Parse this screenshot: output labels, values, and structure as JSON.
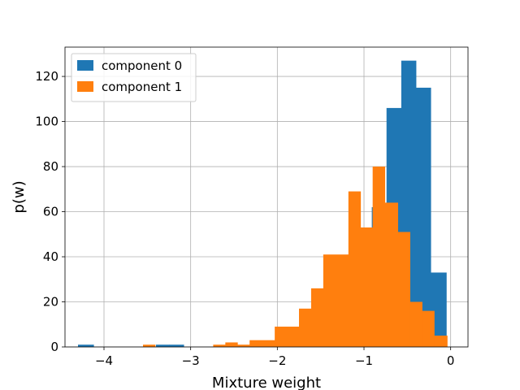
{
  "chart_data": {
    "type": "bar",
    "title": "",
    "xlabel": "Mixture weight",
    "ylabel": "p(w)",
    "xlim": [
      -4.45,
      0.2
    ],
    "ylim": [
      0,
      133
    ],
    "xticks": [
      -4,
      -3,
      -2,
      -1,
      0
    ],
    "yticks": [
      0,
      20,
      40,
      60,
      80,
      100,
      120
    ],
    "grid": true,
    "legend_position": "top-left",
    "series": [
      {
        "name": "component 0",
        "color": "#1f77b4",
        "bins": [
          {
            "x0": -4.3,
            "x1": -4.12,
            "y": 1
          },
          {
            "x0": -3.4,
            "x1": -3.25,
            "y": 1
          },
          {
            "x0": -3.25,
            "x1": -3.08,
            "y": 1
          },
          {
            "x0": -0.91,
            "x1": -0.74,
            "y": 62
          },
          {
            "x0": -0.74,
            "x1": -0.57,
            "y": 106
          },
          {
            "x0": -0.57,
            "x1": -0.4,
            "y": 127
          },
          {
            "x0": -0.4,
            "x1": -0.23,
            "y": 115
          },
          {
            "x0": -0.23,
            "x1": -0.05,
            "y": 33
          }
        ]
      },
      {
        "name": "component 1",
        "color": "#ff7f0e",
        "bins": [
          {
            "x0": -3.55,
            "x1": -3.41,
            "y": 1
          },
          {
            "x0": -2.74,
            "x1": -2.6,
            "y": 1
          },
          {
            "x0": -2.6,
            "x1": -2.46,
            "y": 2
          },
          {
            "x0": -2.46,
            "x1": -2.32,
            "y": 1
          },
          {
            "x0": -2.32,
            "x1": -2.03,
            "y": 3
          },
          {
            "x0": -2.03,
            "x1": -1.75,
            "y": 9
          },
          {
            "x0": -1.75,
            "x1": -1.61,
            "y": 17
          },
          {
            "x0": -1.61,
            "x1": -1.47,
            "y": 26
          },
          {
            "x0": -1.47,
            "x1": -1.18,
            "y": 41
          },
          {
            "x0": -1.18,
            "x1": -1.04,
            "y": 69
          },
          {
            "x0": -1.04,
            "x1": -0.9,
            "y": 53
          },
          {
            "x0": -0.9,
            "x1": -0.76,
            "y": 80
          },
          {
            "x0": -0.76,
            "x1": -0.61,
            "y": 64
          },
          {
            "x0": -0.61,
            "x1": -0.47,
            "y": 51
          },
          {
            "x0": -0.47,
            "x1": -0.33,
            "y": 20
          },
          {
            "x0": -0.33,
            "x1": -0.19,
            "y": 16
          },
          {
            "x0": -0.19,
            "x1": -0.04,
            "y": 5
          }
        ]
      }
    ]
  }
}
